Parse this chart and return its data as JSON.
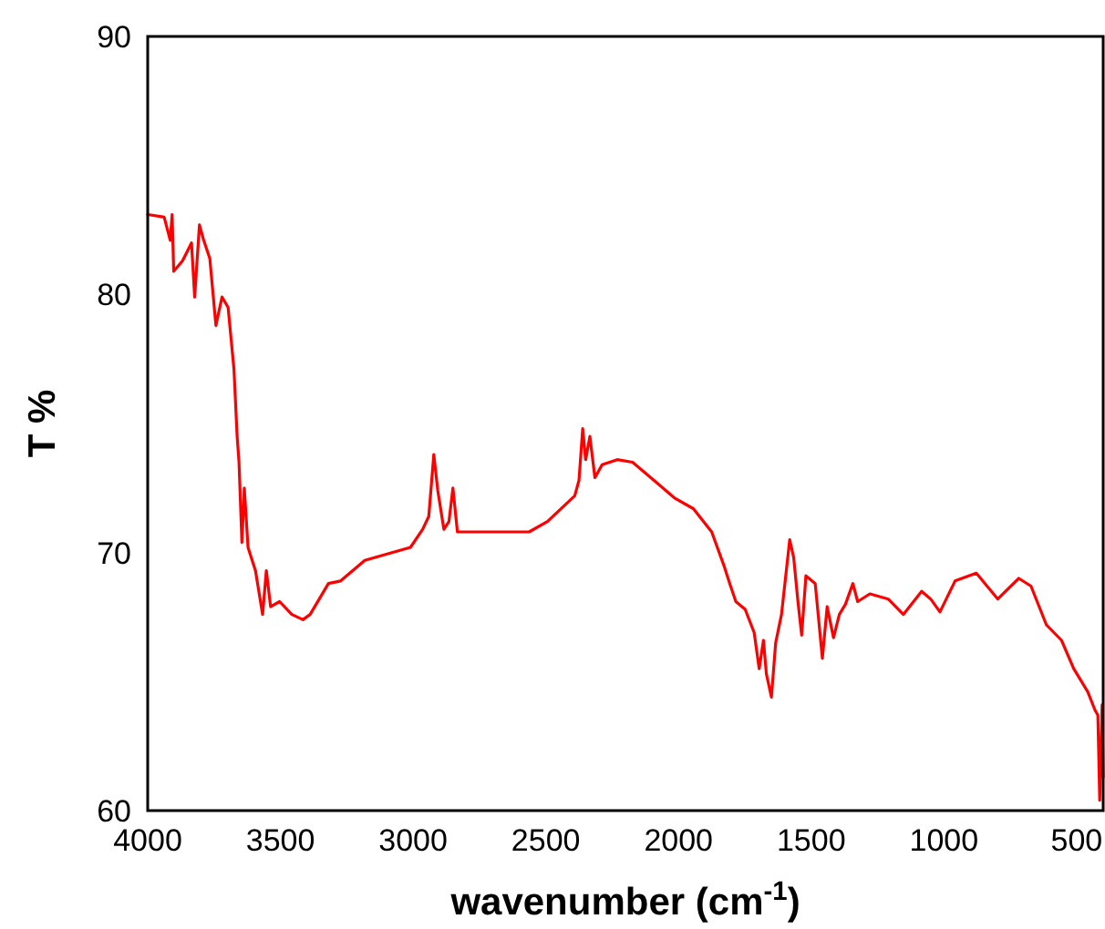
{
  "chart_data": {
    "type": "line",
    "xlabel": "wavenumber (cm$^{-1}$)",
    "ylabel": "T %",
    "xlim": [
      4000,
      400
    ],
    "ylim": [
      60,
      90
    ],
    "xticks": [
      4000,
      3500,
      3000,
      2500,
      2000,
      1500,
      1000,
      500
    ],
    "yticks": [
      60,
      70,
      80,
      90
    ],
    "grid": false,
    "line_style": "solid",
    "series": [
      {
        "color": "#ff0000",
        "x": [
          4000,
          3938,
          3915,
          3908,
          3902,
          3869,
          3835,
          3823,
          3805,
          3789,
          3766,
          3743,
          3720,
          3697,
          3675,
          3663,
          3656,
          3645,
          3636,
          3622,
          3594,
          3567,
          3553,
          3537,
          3503,
          3457,
          3415,
          3388,
          3319,
          3273,
          3182,
          3113,
          3010,
          2964,
          2941,
          2922,
          2907,
          2884,
          2865,
          2850,
          2833,
          2769,
          2563,
          2494,
          2391,
          2375,
          2361,
          2350,
          2334,
          2315,
          2288,
          2231,
          2173,
          2081,
          2013,
          1944,
          1875,
          1829,
          1807,
          1784,
          1749,
          1715,
          1696,
          1680,
          1669,
          1650,
          1634,
          1612,
          1581,
          1566,
          1550,
          1536,
          1520,
          1485,
          1458,
          1440,
          1416,
          1394,
          1371,
          1343,
          1325,
          1279,
          1210,
          1153,
          1084,
          1050,
          1015,
          958,
          878,
          797,
          718,
          672,
          614,
          557,
          511,
          458,
          431,
          420,
          413,
          404,
          400
        ],
        "values": [
          83.1,
          83.0,
          82.1,
          83.1,
          80.9,
          81.3,
          82.0,
          79.9,
          82.7,
          82.1,
          81.4,
          78.8,
          79.9,
          79.5,
          77.1,
          74.5,
          73.5,
          70.4,
          72.5,
          70.2,
          69.3,
          67.6,
          69.3,
          67.9,
          68.1,
          67.6,
          67.4,
          67.6,
          68.8,
          68.9,
          69.7,
          69.9,
          70.2,
          70.9,
          71.4,
          73.8,
          72.4,
          70.9,
          71.2,
          72.5,
          70.8,
          70.8,
          70.8,
          71.2,
          72.2,
          72.8,
          74.8,
          73.6,
          74.5,
          72.9,
          73.4,
          73.6,
          73.5,
          72.7,
          72.1,
          71.7,
          70.8,
          69.5,
          68.8,
          68.1,
          67.8,
          66.9,
          65.5,
          66.6,
          65.3,
          64.4,
          66.5,
          67.6,
          70.5,
          69.8,
          68.1,
          66.8,
          69.1,
          68.8,
          65.9,
          67.9,
          66.7,
          67.6,
          68.0,
          68.8,
          68.1,
          68.4,
          68.2,
          67.6,
          68.5,
          68.2,
          67.7,
          68.9,
          69.2,
          68.2,
          69.0,
          68.7,
          67.2,
          66.6,
          65.5,
          64.6,
          63.9,
          63.7,
          60.4,
          64.1,
          61.3
        ]
      }
    ]
  }
}
